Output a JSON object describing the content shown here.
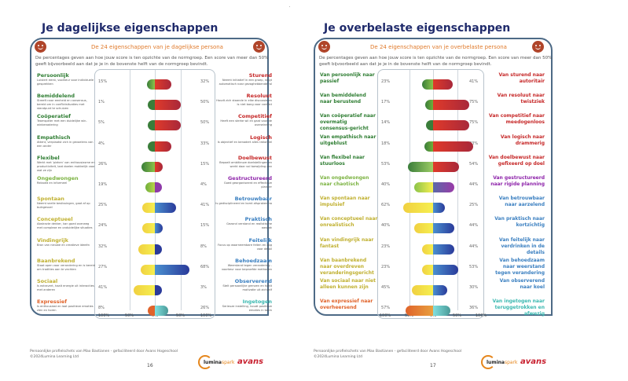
{
  "pages": [
    {
      "page_title": "Je dagelijkse eigenschappen",
      "subtitle": "De 24 eigenschappen van je dagelijkse persona",
      "description": "De percentages geven aan hoe jouw score is ten opzichte van de normgroep. Een score van meer dan 50% geeft bijvoorbeeld aan dat je je in de bovenste helft van de normgroep bevindt.",
      "footer_line1": "Persoonlijke profielschets van Max Bastianen - gefaciliteerd door Avans Hogeschool",
      "footer_line2": "©2024Lumina Learning Ltd",
      "page_number": "16",
      "logo_lumina": "lumina",
      "logo_lumina_spark": "spark",
      "logo_avans": "avans",
      "icons": [
        "smiley-icon",
        "smiley-icon"
      ]
    },
    {
      "page_title": "Je overbelaste eigenschappen",
      "subtitle": "De 24 eigenschappen van je overbelaste persona",
      "description": "De percentages geven aan hoe jouw score is ten opzichte van de normgroep. Een score van meer dan 50% geeft bijvoorbeeld aan dat je je in de bovenste helft van de normgroep bevindt.",
      "footer_line1": "Persoonlijke profielschets van Max Bastianen - gefaciliteerd door Avans Hogeschool",
      "footer_line2": "©2024Lumina Learning Ltd",
      "page_number": "17",
      "logo_lumina": "lumina",
      "logo_lumina_spark": "spark",
      "logo_avans": "avans",
      "icons": [
        "frown-icon",
        "frown-icon"
      ]
    }
  ],
  "chart_data": [
    {
      "type": "bar",
      "title": "De 24 eigenschappen van je dagelijkse persona",
      "xticks": [
        "100%",
        "50%",
        "0%",
        "50%",
        "100%"
      ],
      "xlim": [
        -100,
        100
      ],
      "rows": [
        {
          "left": "Persoonlijk",
          "left_desc": "Luistert eerst, voorkeur voor individuele gesprekken",
          "left_pct": 15,
          "right": "Sturend",
          "right_desc": "Neemt initiatief in een groep, neigt automatisch naar gezaghebbende rol",
          "right_pct": 32,
          "lc": "#2e7d32",
          "rc": "#c62828",
          "lcol": [
            "#3a7d3a",
            "#8bc34a"
          ],
          "rcol": [
            "#e03a2a",
            "#a8283a"
          ]
        },
        {
          "left": "Bemiddelend",
          "left_desc": "Streeft naar eenheid en consensus, bereid om in conflictsituaties met standpunt te schuiven",
          "left_pct": 1,
          "right": "Resoluut",
          "right_desc": "Houdt zich staande in elke discussie en is niet bang voor conflict",
          "right_pct": 50,
          "lc": "#2e7d32",
          "rc": "#c62828",
          "lcol": [
            "#3a7d3a",
            "#3a7d3a"
          ],
          "rcol": [
            "#e03a2a",
            "#a8283a"
          ]
        },
        {
          "left": "Coöperatief",
          "left_desc": "Teamspeler met een duidelijke win-winbenadering",
          "left_pct": 5,
          "right": "Competitief",
          "right_desc": "Heeft een sterke wil en gaat voor de overwinning",
          "right_pct": 50,
          "lc": "#2e7d32",
          "rc": "#c62828",
          "lcol": [
            "#3a7d3a",
            "#3a7d3a"
          ],
          "rcol": [
            "#e03a2a",
            "#a8283a"
          ]
        },
        {
          "left": "Empathisch",
          "left_desc": "Attent, verplaatst zich in gevoelens van een ander",
          "left_pct": 4,
          "right": "Logisch",
          "right_desc": "Is objectief en benadert alles rationeel",
          "right_pct": 33,
          "lc": "#2e7d32",
          "rc": "#c62828",
          "lcol": [
            "#3a7d3a",
            "#3a7d3a"
          ],
          "rcol": [
            "#e03a2a",
            "#a8283a"
          ]
        },
        {
          "left": "Flexibel",
          "left_desc": "Werkt met 'pieken' van enthousiasme en productiviteit, laat doelen makkelijk voor wat ze zijn",
          "left_pct": 26,
          "right": "Doelbewust",
          "right_desc": "Bepaalt ambitieuze doelstellingen en werkt daar vol toewijding aan",
          "right_pct": 15,
          "lc": "#2e7d32",
          "rc": "#c62828",
          "lcol": [
            "#3a7d3a",
            "#8bc34a"
          ],
          "rcol": [
            "#e03a2a",
            "#a8283a"
          ]
        },
        {
          "left": "Ongedwongen",
          "left_desc": "Relaxed en informeel",
          "left_pct": 19,
          "right": "Gestructureerd",
          "right_desc": "Goed georganiseerd en effectieve planner",
          "right_pct": 4,
          "lc": "#7cb342",
          "rc": "#8e24aa",
          "lcol": [
            "#6fae3a",
            "#b8d44a"
          ],
          "rcol": [
            "#8e3aa8",
            "#8e3aa8"
          ]
        },
        {
          "left": "Spontaan",
          "left_desc": "Neemt snelle beslissingen, gaat af op buikgevoel",
          "left_pct": 25,
          "right": "Betrouwbaar",
          "right_desc": "Is gedisciplineerd en komt afspraken na",
          "right_pct": 41,
          "lc": "#c0b030",
          "rc": "#3a7fc0",
          "lcol": [
            "#f0d040",
            "#f6ef50"
          ],
          "rcol": [
            "#4a90d0",
            "#2a3a9a"
          ]
        },
        {
          "left": "Conceptueel",
          "left_desc": "Abstracte denker, kan goed overweg met complexe en onduidelijke situaties",
          "left_pct": 24,
          "right": "Praktisch",
          "right_desc": "Gezond verstand en realistische aanpak",
          "right_pct": 15,
          "lc": "#c0b030",
          "rc": "#3a7fc0",
          "lcol": [
            "#f0d040",
            "#f6ef50"
          ],
          "rcol": [
            "#4a90d0",
            "#2a3a9a"
          ]
        },
        {
          "left": "Vindingrijk",
          "left_desc": "Bron van nieuwe en creatieve ideeën",
          "left_pct": 32,
          "right": "Feitelijk",
          "right_desc": "Focus op waarneembare feiten en oog voor detail",
          "right_pct": 8,
          "lc": "#c0b030",
          "rc": "#3a7fc0",
          "lcol": [
            "#f0d040",
            "#f6ef50"
          ],
          "rcol": [
            "#2a3a9a",
            "#2a3a9a"
          ]
        },
        {
          "left": "Baanbrekend",
          "left_desc": "Staat open voor verandering en is bereid om tradities aan te vechten",
          "left_pct": 27,
          "right": "Behoedzaam",
          "right_desc": "Weerstand tegen verandering - voorkeur voor beproefde methoden",
          "right_pct": 68,
          "lc": "#c0b030",
          "rc": "#3a7fc0",
          "lcol": [
            "#f0d040",
            "#f6ef50"
          ],
          "rcol": [
            "#4a90d0",
            "#2a3a9a"
          ]
        },
        {
          "left": "Sociaal",
          "left_desc": "Is extravert, haalt energie uit interacties met anderen",
          "left_pct": 41,
          "right": "Observerend",
          "right_desc": "Stelt persoonlijke grenzen en haalt motivatie uit zichzelf",
          "right_pct": 3,
          "lc": "#c0b030",
          "rc": "#3a7fc0",
          "lcol": [
            "#f0d040",
            "#f6ef50"
          ],
          "rcol": [
            "#2a3a9a",
            "#2a3a9a"
          ]
        },
        {
          "left": "Expressief",
          "left_desc": "Is enthousiast en laat positieve emoties zien en horen",
          "left_pct": 8,
          "right": "Ingetogen",
          "right_desc": "Serieuze instelling, houdt positieve emoties in toom",
          "right_pct": 26,
          "lc": "#e0632a",
          "rc": "#3ab8b0",
          "lcol": [
            "#e0632a",
            "#e0632a"
          ],
          "rcol": [
            "#80e0e0",
            "#4a9a98"
          ]
        }
      ]
    },
    {
      "type": "bar",
      "title": "De 24 eigenschappen van je overbelaste persona",
      "xticks": [
        "100%",
        "50%",
        "0%",
        "50%",
        "100%"
      ],
      "xlim": [
        -100,
        100
      ],
      "rows": [
        {
          "left": "Van persoonlijk naar passief",
          "left_pct": 23,
          "right": "Van sturend naar autoritair",
          "right_pct": 41,
          "lc": "#2e7d32",
          "rc": "#c62828",
          "lcol": [
            "#3a7d3a",
            "#8bc34a"
          ],
          "rcol": [
            "#e03a2a",
            "#a8283a"
          ]
        },
        {
          "left": "Van bemiddelend naar berustend",
          "left_pct": 17,
          "right": "Van resoluut naar twistziek",
          "right_pct": 75,
          "lc": "#2e7d32",
          "rc": "#c62828",
          "lcol": [
            "#3a7d3a",
            "#6fae3a"
          ],
          "rcol": [
            "#e03a2a",
            "#a8283a"
          ]
        },
        {
          "left": "Van coöperatief naar overmatig consensus-gericht",
          "left_pct": 14,
          "right": "Van competitief naar meedogenloos",
          "right_pct": 75,
          "lc": "#2e7d32",
          "rc": "#c62828",
          "lcol": [
            "#3a7d3a",
            "#3a7d3a"
          ],
          "rcol": [
            "#e03a2a",
            "#a8283a"
          ]
        },
        {
          "left": "Van empathisch naar uitgeblust",
          "left_pct": 18,
          "right": "Van logisch naar drammerig",
          "right_pct": 83,
          "lc": "#2e7d32",
          "rc": "#c62828",
          "lcol": [
            "#3a7d3a",
            "#6fae3a"
          ],
          "rcol": [
            "#e03a2a",
            "#a8283a"
          ]
        },
        {
          "left": "Van flexibel naar stuurloos",
          "left_pct": 53,
          "right": "Van doelbewust naar gefixeerd op doel",
          "right_pct": 54,
          "lc": "#2e7d32",
          "rc": "#c62828",
          "lcol": [
            "#3a7d3a",
            "#9ccc65"
          ],
          "rcol": [
            "#e03a2a",
            "#a8283a"
          ]
        },
        {
          "left": "Van ongedwongen naar chaotisch",
          "left_pct": 40,
          "right": "Van gestructureerd naar rigide planning",
          "right_pct": 44,
          "lc": "#7cb342",
          "rc": "#8e24aa",
          "lcol": [
            "#8bc34a",
            "#f6ef50"
          ],
          "rcol": [
            "#5a6aa8",
            "#9a3aa8"
          ]
        },
        {
          "left": "Van spontaan naar impulsief",
          "left_pct": 62,
          "right": "Van betrouwbaar naar aarzelend",
          "right_pct": 25,
          "lc": "#c0b030",
          "rc": "#3a7fc0",
          "lcol": [
            "#f0d040",
            "#f6ef50"
          ],
          "rcol": [
            "#4a90d0",
            "#2a3a9a"
          ]
        },
        {
          "left": "Van conceptueel naar onrealistisch",
          "left_pct": 40,
          "right": "Van praktisch naar kortzichtig",
          "right_pct": 44,
          "lc": "#c0b030",
          "rc": "#3a7fc0",
          "lcol": [
            "#f0d040",
            "#f6ef50"
          ],
          "rcol": [
            "#4a90d0",
            "#2a3a9a"
          ]
        },
        {
          "left": "Van vindingrijk naar fantast",
          "left_pct": 23,
          "right": "Van feitelijk naar verdrinken in de details",
          "right_pct": 44,
          "lc": "#c0b030",
          "rc": "#3a7fc0",
          "lcol": [
            "#f0d040",
            "#f6ef50"
          ],
          "rcol": [
            "#4a90d0",
            "#2a3a9a"
          ]
        },
        {
          "left": "Van baanbrekend naar overdreven veranderingsgericht",
          "left_pct": 23,
          "right": "Van behoedzaam naar weerstand tegen verandering",
          "right_pct": 53,
          "lc": "#c0b030",
          "rc": "#3a7fc0",
          "lcol": [
            "#f0d040",
            "#f6ef50"
          ],
          "rcol": [
            "#4a90d0",
            "#2a3a9a"
          ]
        },
        {
          "left": "Van sociaal naar niet alleen kunnen zijn",
          "left_pct": 45,
          "right": "Van observerend naar koel",
          "right_pct": 30,
          "lc": "#c0b030",
          "rc": "#3a7fc0",
          "lcol": [
            "#f0d040",
            "#f6ef50"
          ],
          "rcol": [
            "#4a90d0",
            "#2a3a9a"
          ]
        },
        {
          "left": "Van expressief naar overheersend",
          "left_pct": 57,
          "right": "Van ingetogen naar teruggetrokken en afwezig",
          "right_pct": 36,
          "lc": "#e0632a",
          "rc": "#3ab8b0",
          "lcol": [
            "#e0632a",
            "#e8a040"
          ],
          "rcol": [
            "#80e0e0",
            "#4a9a98"
          ]
        }
      ]
    }
  ]
}
